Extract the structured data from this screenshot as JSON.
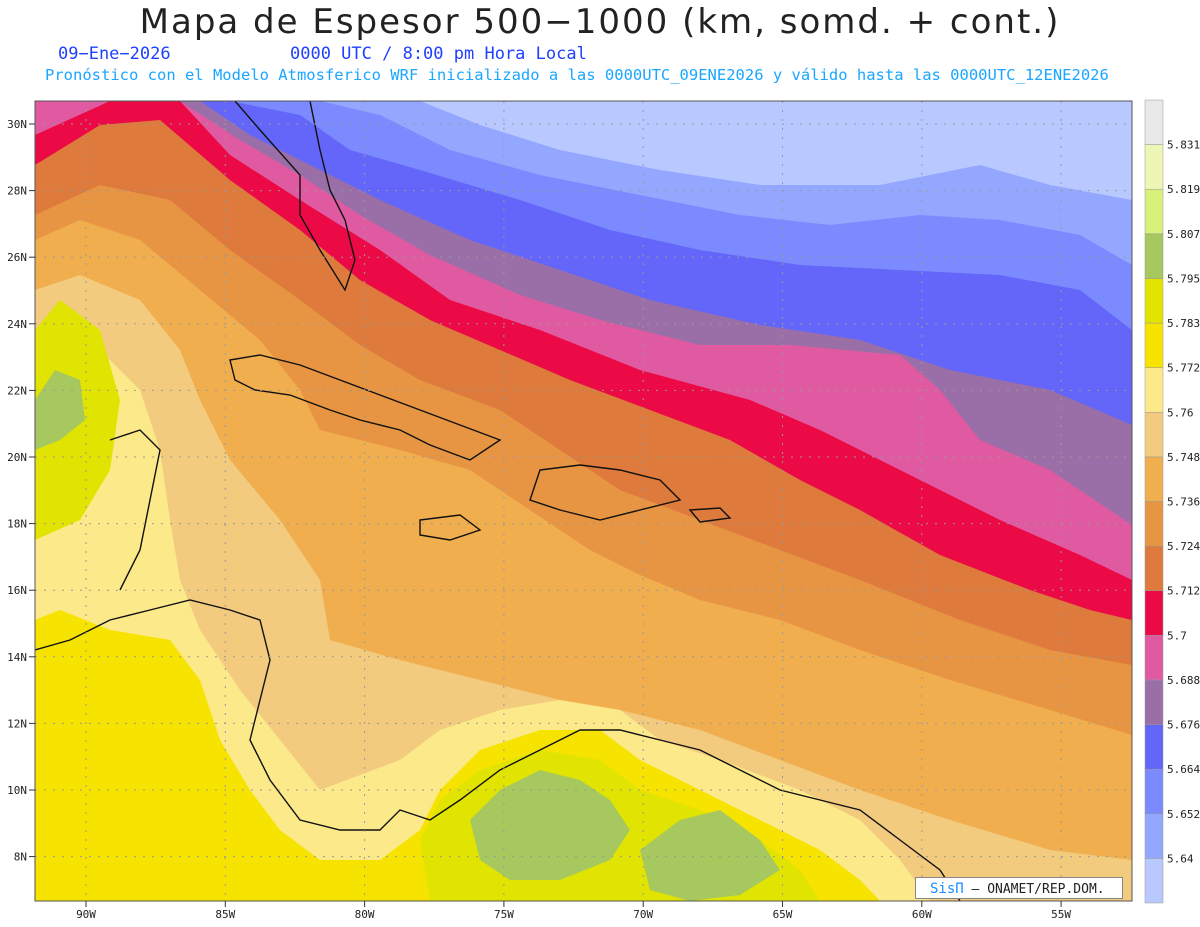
{
  "title": "Mapa de Espesor 500−1000 (km, somd. + cont.)",
  "date": "09−Ene−2026",
  "time": "0000 UTC / 8:00 pm Hora Local",
  "model_info": "Pronóstico con el Modelo Atmosferico WRF inicializado a las 0000UTC_09ENE2026 y válido hasta las  0000UTC_12ENE2026",
  "credit": {
    "brand": "SisΠ",
    "text": "– ONAMET/REP.DOM."
  },
  "lon_labels": [
    "90W",
    "85W",
    "80W",
    "75W",
    "70W",
    "65W",
    "60W",
    "55W"
  ],
  "lat_labels": [
    "30N",
    "28N",
    "26N",
    "24N",
    "22N",
    "20N",
    "18N",
    "16N",
    "14N",
    "12N",
    "10N",
    "8N"
  ],
  "colorbar": {
    "labels": [
      "5.64",
      "5.652",
      "5.664",
      "5.676",
      "5.688",
      "5.7",
      "5.712",
      "5.724",
      "5.736",
      "5.748",
      "5.76",
      "5.772",
      "5.783",
      "5.795",
      "5.807",
      "5.819",
      "5.831"
    ],
    "colors": [
      "#b9c8ff",
      "#93a7ff",
      "#7b8bff",
      "#6366f8",
      "#9a6fa8",
      "#e05aa2",
      "#eb0a45",
      "#dd7a3c",
      "#e79543",
      "#f0ae4e",
      "#f2cb7f",
      "#fce98a",
      "#f7e300",
      "#e0e400",
      "#a7c85e",
      "#d9f07a",
      "#eef6b5",
      "#e8e8e8"
    ]
  }
}
